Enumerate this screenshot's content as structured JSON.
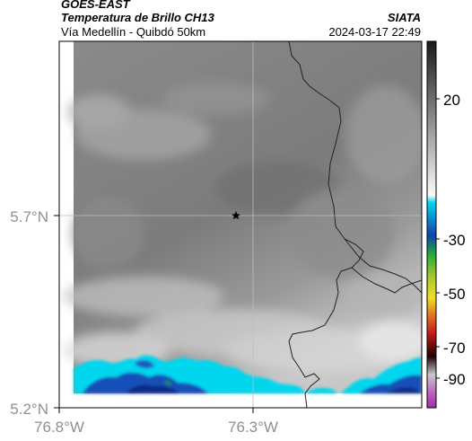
{
  "header": {
    "satellite": "GOES-EAST",
    "product": "Temperatura de Brillo CH13",
    "region": "Vía Medellín - Quibdó 50km",
    "organization": "SIATA",
    "datetime": "2024-03-17 22:49"
  },
  "axes": {
    "lat_ticks": [
      "5.7°N",
      "5.2°N"
    ],
    "lon_ticks": [
      "76.8°W",
      "76.3°W"
    ]
  },
  "colorbar": {
    "ticks": [
      "20",
      "-30",
      "-50",
      "-70",
      "-90"
    ],
    "colors": {
      "warm": "#ffffff",
      "cold_top": "#1a1a1a",
      "cyan": "#00d8f0",
      "blue": "#1040b0",
      "green": "#22a83a",
      "yellow": "#f0e020",
      "red": "#d02020",
      "magenta": "#c060c0"
    }
  },
  "map": {
    "marker": "star-icon",
    "marker_color": "#000000",
    "border_color": "#222222",
    "grid_color": "#bdbdbd"
  }
}
